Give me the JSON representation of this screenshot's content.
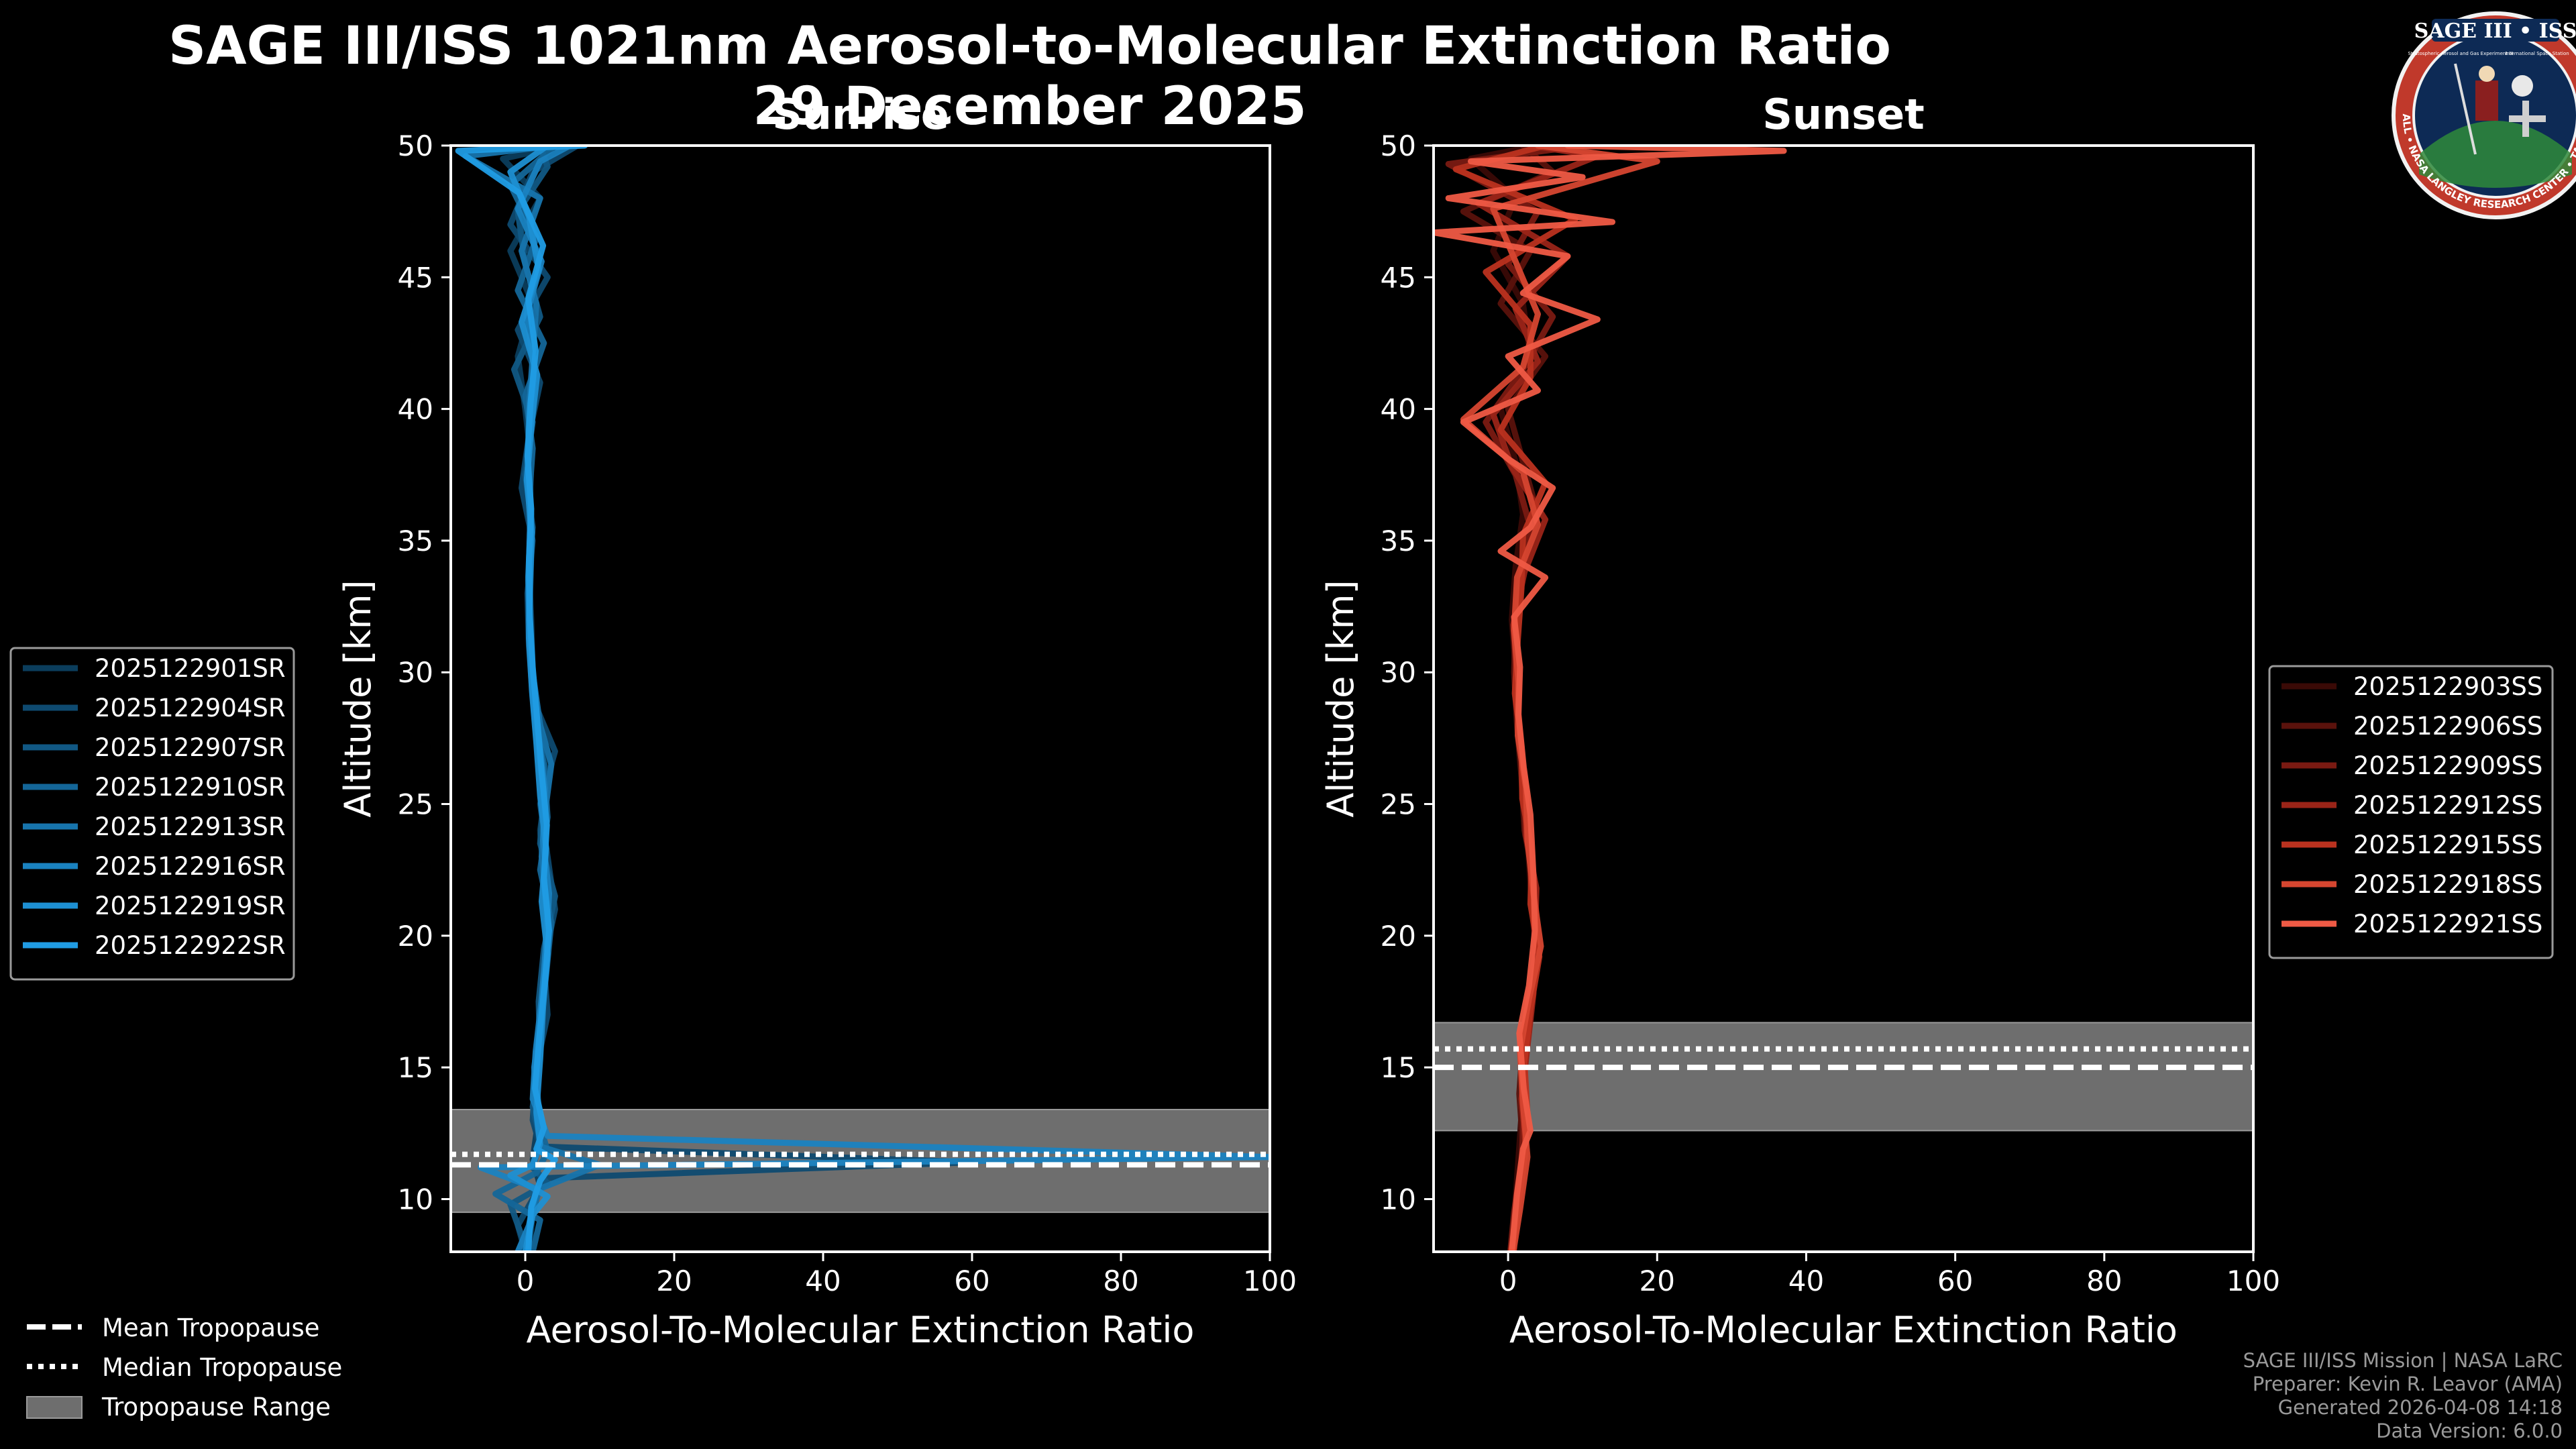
{
  "header": {
    "title": "SAGE III/ISS 1021nm Aerosol-to-Molecular Extinction Ratio",
    "date": "29 December 2025"
  },
  "logo": {
    "title": "SAGE III • ISS",
    "ring_text": "BALL • NASA LANGLEY RESEARCH CENTER • TAS • ESA",
    "subtitle_left": "Stratospheric Aerosol and Gas Experiment III",
    "subtitle_right": "International Space Station"
  },
  "footer": {
    "line1": "SAGE III/ISS Mission | NASA LaRC",
    "line2": "Preparer: Kevin R. Leavor (AMA)",
    "line3": "Generated 2026-04-08 14:18",
    "line4": "Data Version: 6.0.0"
  },
  "tropopause_legend": {
    "mean": "Mean Tropopause",
    "median": "Median Tropopause",
    "range": "Tropopause Range"
  },
  "chart_data": [
    {
      "type": "line",
      "panel": "Sunrise",
      "title": "Sunrise",
      "xlabel": "Aerosol-To-Molecular Extinction Ratio",
      "ylabel": "Altitude [km]",
      "xlim": [
        -10,
        100
      ],
      "ylim": [
        8,
        50
      ],
      "xticks": [
        0,
        20,
        40,
        60,
        80,
        100
      ],
      "yticks": [
        10,
        15,
        20,
        25,
        30,
        35,
        40,
        45,
        50
      ],
      "legend_position": "left",
      "tropopause": {
        "mean": 11.3,
        "median": 11.7,
        "range": [
          9.5,
          13.4
        ]
      },
      "colors": [
        "#0b3d5c",
        "#0e4a70",
        "#115884",
        "#146698",
        "#1774ac",
        "#1a82c0",
        "#1d8fd2",
        "#209ce4"
      ],
      "series": [
        {
          "name": "2025122901SR",
          "y": [
            8,
            9.5,
            10.5,
            11.5,
            12.5,
            14,
            16,
            18,
            20,
            22,
            24,
            26,
            28,
            30,
            32,
            34,
            36,
            38,
            40,
            42,
            44,
            46,
            48,
            49.5,
            50
          ],
          "x": [
            0.5,
            1,
            2,
            1,
            1.5,
            1.2,
            2,
            2.4,
            3,
            2.5,
            2,
            3,
            1.5,
            1,
            0.8,
            0.5,
            0.6,
            0.8,
            0,
            -1,
            1,
            -2,
            2,
            -3,
            5
          ]
        },
        {
          "name": "2025122904SR",
          "y": [
            8,
            9,
            10,
            10.8,
            11.4,
            12,
            13,
            15,
            17,
            19,
            21,
            23,
            25,
            27,
            29,
            31,
            33,
            35,
            37,
            39,
            41,
            43,
            45,
            47,
            49,
            50
          ],
          "x": [
            0,
            -1,
            1,
            3,
            60,
            2,
            1,
            1.5,
            3,
            2.5,
            4,
            3,
            2,
            4,
            1,
            0.5,
            0.3,
            1,
            -0.5,
            0.5,
            2,
            -1,
            3,
            -2,
            1,
            7
          ]
        },
        {
          "name": "2025122907SR",
          "y": [
            8,
            9.8,
            10.6,
            11.2,
            12.2,
            13.5,
            15.5,
            17.5,
            19.5,
            21.5,
            23.5,
            25.5,
            27.5,
            29.5,
            31.5,
            33.5,
            35.5,
            37.5,
            39.5,
            41.5,
            43.5,
            45.5,
            47.5,
            49.2,
            50
          ],
          "x": [
            0.3,
            -2,
            3,
            1,
            2,
            1,
            2,
            1.8,
            2.5,
            4,
            2,
            2.5,
            1.5,
            1,
            0.5,
            0.4,
            1,
            0,
            1,
            -1.5,
            2,
            0,
            -1,
            3,
            2
          ]
        },
        {
          "name": "2025122910SR",
          "y": [
            8,
            9.2,
            10.2,
            11,
            11.8,
            12.8,
            14.5,
            16.5,
            18.5,
            20.5,
            22.5,
            24.5,
            26.5,
            28.5,
            30.5,
            32.5,
            34.5,
            36.5,
            38.5,
            40.5,
            42.5,
            44.5,
            46.5,
            48.5,
            50
          ],
          "x": [
            1,
            2,
            -4,
            1.5,
            3,
            2,
            1.5,
            2,
            2.8,
            3.5,
            2,
            3,
            2.5,
            1.2,
            0.7,
            0.6,
            0.8,
            0.5,
            1,
            0,
            2.5,
            -1,
            1.5,
            -2,
            4
          ]
        },
        {
          "name": "2025122913SR",
          "y": [
            8,
            9.6,
            10.4,
            11.3,
            12,
            13.2,
            15,
            17,
            19,
            21,
            23,
            25,
            26.5,
            28,
            30,
            32,
            34,
            36,
            38,
            40,
            42,
            44,
            46,
            48,
            49.6,
            50
          ],
          "x": [
            0.2,
            1,
            2,
            10,
            2,
            1.5,
            1.2,
            2.2,
            2.6,
            3,
            2.2,
            2.8,
            3.5,
            2,
            1,
            0.5,
            0.6,
            0.8,
            0.4,
            0.5,
            1,
            1.5,
            -0.5,
            2,
            -8,
            4
          ]
        },
        {
          "name": "2025122916SR",
          "y": [
            8,
            9,
            10.4,
            11.2,
            11.6,
            12.4,
            13.8,
            15.6,
            17.6,
            19.6,
            21.6,
            23.6,
            25.6,
            27.6,
            29.6,
            31.6,
            33.6,
            35.6,
            37.6,
            39.6,
            41.6,
            43.6,
            45.6,
            47.6,
            49.4,
            50
          ],
          "x": [
            -1,
            0.5,
            1.5,
            -6,
            100,
            3,
            1,
            1.4,
            2.2,
            2.8,
            3.2,
            2.4,
            2.6,
            1.8,
            1.1,
            0.6,
            0.4,
            0.7,
            0.3,
            0.9,
            1.2,
            0.2,
            2.2,
            -1,
            2,
            6
          ]
        },
        {
          "name": "2025122919SR",
          "y": [
            8,
            9.4,
            10.1,
            10.9,
            11.3,
            12.1,
            13.3,
            15.3,
            17.3,
            19.3,
            21.3,
            23.3,
            25.3,
            27.3,
            29.3,
            31.3,
            33.3,
            35.3,
            37.3,
            39.3,
            41.3,
            43.3,
            45.3,
            47.3,
            49,
            50
          ],
          "x": [
            0,
            1,
            3,
            -2,
            1,
            2,
            1.5,
            2,
            2.4,
            3,
            2.2,
            2.8,
            2,
            1.5,
            0.9,
            0.5,
            0.6,
            0.9,
            0.2,
            0.8,
            1.6,
            -0.5,
            1.8,
            0.5,
            -2,
            3
          ]
        },
        {
          "name": "2025122922SR",
          "y": [
            8,
            9.7,
            10.7,
            11.5,
            11.9,
            12.7,
            14.2,
            16.2,
            18.2,
            20.2,
            22.2,
            24.2,
            26.2,
            28.2,
            30.2,
            32.2,
            34.2,
            36.2,
            38.2,
            40.2,
            42.2,
            44.2,
            46.2,
            48.2,
            49.8,
            50
          ],
          "x": [
            0.4,
            0.8,
            2,
            4,
            1.5,
            2.5,
            1.3,
            1.9,
            2.6,
            3.2,
            2.5,
            2.9,
            2.2,
            1.6,
            1,
            0.6,
            0.5,
            0.8,
            0.3,
            0.7,
            1.4,
            0.4,
            2.4,
            -0.8,
            -9,
            8
          ]
        }
      ]
    },
    {
      "type": "line",
      "panel": "Sunset",
      "title": "Sunset",
      "xlabel": "Aerosol-To-Molecular Extinction Ratio",
      "ylabel": "Altitude [km]",
      "xlim": [
        -10,
        100
      ],
      "ylim": [
        8,
        50
      ],
      "xticks": [
        0,
        20,
        40,
        60,
        80,
        100
      ],
      "yticks": [
        10,
        15,
        20,
        25,
        30,
        35,
        40,
        45,
        50
      ],
      "legend_position": "right",
      "tropopause": {
        "mean": 15.0,
        "median": 15.7,
        "range": [
          12.6,
          16.7
        ]
      },
      "colors": [
        "#3a0a06",
        "#5a120c",
        "#7a1a12",
        "#9a2418",
        "#ba321f",
        "#d64630",
        "#ef5a45"
      ],
      "series": [
        {
          "name": "2025122903SS",
          "y": [
            8,
            10,
            12,
            14,
            16,
            18,
            20,
            22,
            24,
            26,
            28,
            30,
            32,
            34,
            36,
            38,
            40,
            42,
            44,
            46,
            48,
            49.5,
            50
          ],
          "x": [
            0.5,
            1,
            1.5,
            2,
            2.5,
            3,
            3.5,
            3,
            2.5,
            2,
            1.5,
            1,
            0.5,
            1,
            2,
            1,
            -1,
            3,
            2,
            -2,
            1,
            -5,
            4
          ]
        },
        {
          "name": "2025122906SS",
          "y": [
            8,
            10,
            12,
            14,
            16,
            18,
            20,
            22,
            24,
            26,
            28,
            30,
            32,
            34,
            36,
            38,
            40,
            42,
            44,
            46,
            47.5,
            49,
            50
          ],
          "x": [
            0.8,
            1.2,
            2,
            1.5,
            2,
            3.2,
            4,
            3.5,
            2.2,
            1.8,
            1.2,
            0.8,
            1,
            2,
            4,
            2,
            0,
            5,
            -1,
            3,
            -6,
            6,
            2
          ]
        },
        {
          "name": "2025122909SS",
          "y": [
            8,
            9.5,
            11.5,
            13.5,
            15.5,
            17.5,
            19.5,
            21.5,
            23.5,
            25.5,
            27.5,
            29.5,
            31.5,
            33.5,
            35.5,
            37.5,
            39.5,
            41.5,
            43.5,
            45.5,
            47.5,
            49.3,
            50
          ],
          "x": [
            0.3,
            0.8,
            1.8,
            2.2,
            1.8,
            2.6,
            3.8,
            3.2,
            2.8,
            2.1,
            1.6,
            1.1,
            0.9,
            1.5,
            3,
            1,
            -3,
            2,
            6,
            0,
            4,
            -8,
            10
          ]
        },
        {
          "name": "2025122912SS",
          "y": [
            8,
            9.8,
            11.8,
            13.8,
            15.8,
            17.8,
            19.8,
            21.8,
            23.8,
            25.8,
            27.8,
            29.8,
            31.8,
            33.8,
            35.8,
            37.8,
            39.8,
            41.8,
            43.8,
            45.8,
            47.8,
            49.6,
            50
          ],
          "x": [
            0.6,
            1.4,
            2.4,
            1.8,
            2.6,
            3.4,
            3.6,
            3.8,
            2.4,
            2.2,
            1.4,
            1.2,
            0.7,
            2.2,
            5,
            0.5,
            -2,
            4,
            1,
            8,
            -4,
            12,
            3
          ]
        },
        {
          "name": "2025122915SS",
          "y": [
            8,
            9.2,
            11.2,
            13.2,
            15.2,
            17.2,
            19.2,
            21.2,
            23.2,
            25.2,
            27.2,
            29.2,
            31.2,
            33.2,
            35.2,
            37.2,
            39.2,
            41.2,
            43.2,
            45.2,
            47.2,
            49.1,
            50
          ],
          "x": [
            0.4,
            1,
            2,
            2.6,
            2.2,
            3,
            4.2,
            3,
            3.2,
            1.9,
            1.8,
            0.9,
            1.3,
            1.8,
            2,
            5,
            -1,
            3,
            3,
            -3,
            9,
            -7,
            5
          ]
        },
        {
          "name": "2025122918SS",
          "y": [
            8,
            9.6,
            11.6,
            13.6,
            15.6,
            17.6,
            19.6,
            21.6,
            23.6,
            25.6,
            27.6,
            29.6,
            31.6,
            33.6,
            35.6,
            37.6,
            39.6,
            41.6,
            43.6,
            45.6,
            47.6,
            49.4,
            50
          ],
          "x": [
            0.7,
            1.6,
            2.6,
            2,
            1.6,
            2.8,
            4.4,
            3.4,
            2.6,
            2.4,
            1.3,
            1.4,
            0.8,
            1.2,
            4,
            2,
            -6,
            2,
            4,
            1,
            -2,
            20,
            4
          ]
        },
        {
          "name": "2025122921SS",
          "y": [
            8,
            10.2,
            11.9,
            12.6,
            14.2,
            16.3,
            18.1,
            20.2,
            22.3,
            24.6,
            26.4,
            28.4,
            30.2,
            32.1,
            33.6,
            34.6,
            35.5,
            37,
            38.1,
            39.5,
            40.7,
            42,
            43.4,
            44.4,
            45.8,
            46.7,
            47.1,
            48,
            48.8,
            49.4,
            49.8,
            50
          ],
          "x": [
            0.5,
            1.2,
            2,
            3,
            2.1,
            1.5,
            2.8,
            3.6,
            3.4,
            3,
            2.1,
            1.4,
            1.6,
            0.8,
            5,
            -1,
            3,
            6,
            0,
            -6,
            4,
            0,
            12,
            2,
            8,
            -10,
            14,
            -8,
            10,
            -5,
            37,
            8
          ]
        }
      ]
    }
  ]
}
